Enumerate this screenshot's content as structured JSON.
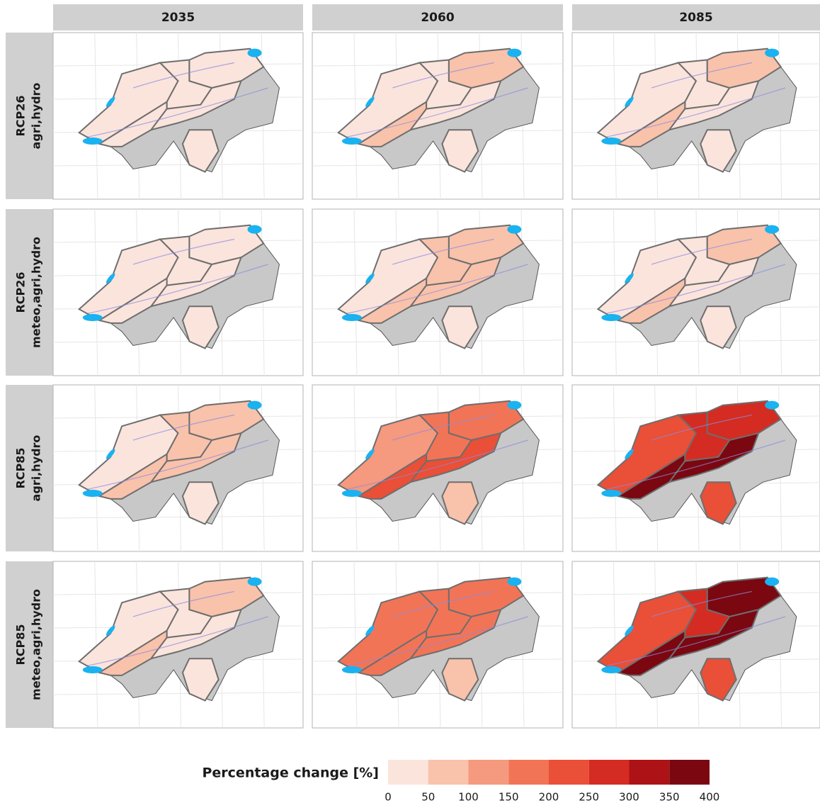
{
  "facets": {
    "columns": [
      "2035",
      "2060",
      "2085"
    ],
    "rows": [
      [
        "RCP26",
        "agri,hydro"
      ],
      [
        "RCP26",
        "meteo,agri,hydro"
      ],
      [
        "RCP85",
        "agri,hydro"
      ],
      [
        "RCP85",
        "meteo,agri,hydro"
      ]
    ]
  },
  "panels": [
    [
      [
        20,
        20,
        20,
        20,
        20,
        20
      ],
      [
        25,
        30,
        60,
        60,
        30,
        25
      ],
      [
        25,
        40,
        60,
        70,
        40,
        30
      ]
    ],
    [
      [
        15,
        15,
        20,
        20,
        15,
        15
      ],
      [
        40,
        60,
        70,
        70,
        60,
        30
      ],
      [
        30,
        40,
        70,
        80,
        40,
        25
      ]
    ],
    [
      [
        20,
        60,
        80,
        80,
        60,
        20
      ],
      [
        110,
        180,
        160,
        240,
        220,
        80
      ],
      [
        220,
        270,
        280,
        360,
        370,
        220
      ]
    ],
    [
      [
        30,
        40,
        60,
        60,
        40,
        30
      ],
      [
        170,
        170,
        180,
        190,
        180,
        80
      ],
      [
        240,
        270,
        360,
        380,
        370,
        220
      ]
    ]
  ],
  "legend": {
    "title": "Percentage change [%]",
    "breaks": [
      0,
      50,
      100,
      150,
      200,
      250,
      300,
      350,
      400
    ],
    "colors": [
      "#fbe4dc",
      "#f9c2ab",
      "#f5997f",
      "#f27457",
      "#ea4f37",
      "#d42c22",
      "#ad1316",
      "#7b0710"
    ]
  }
}
